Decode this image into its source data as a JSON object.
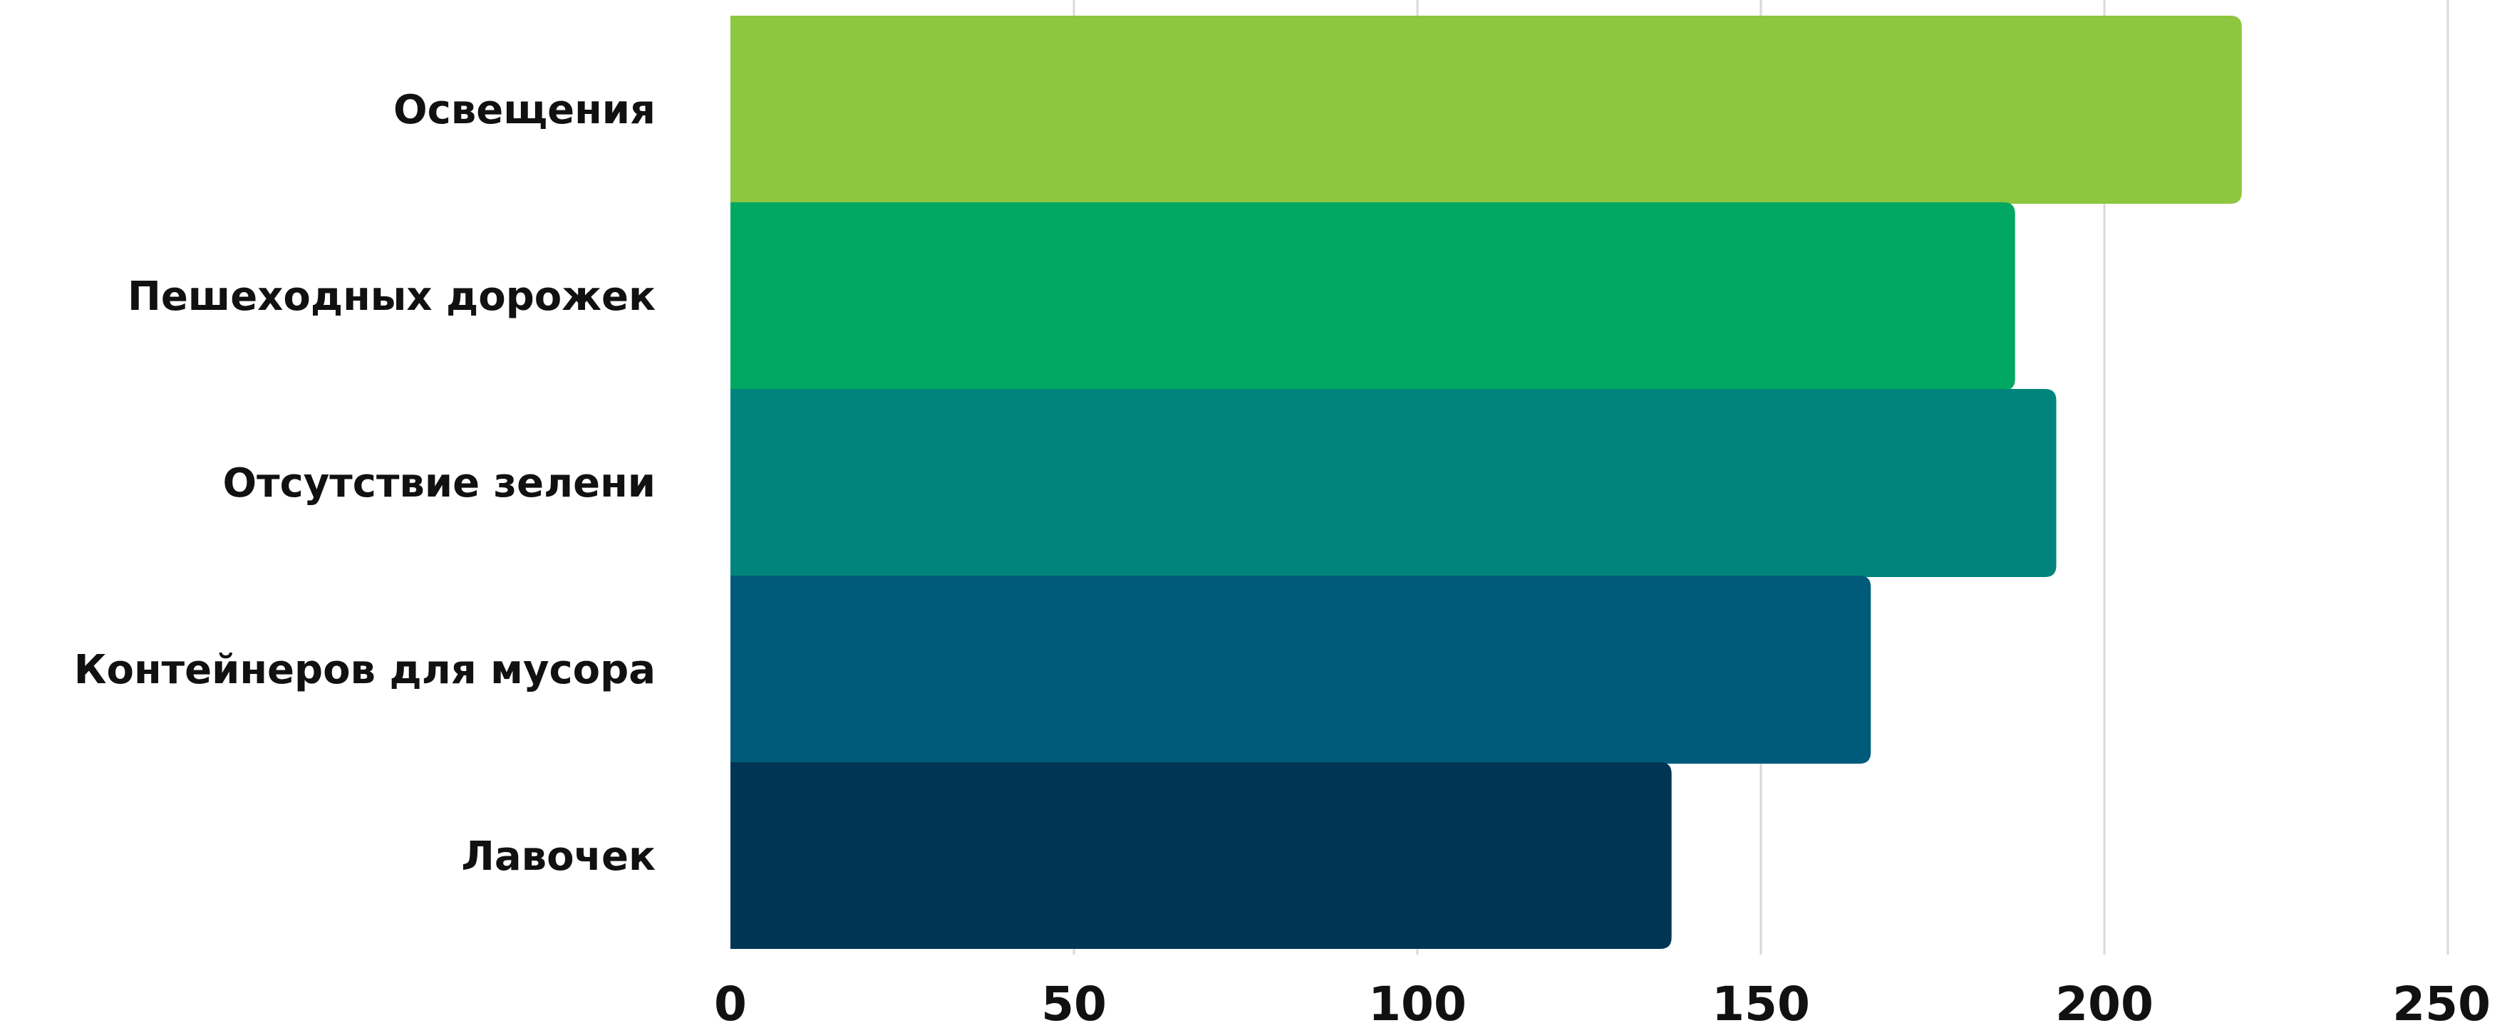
{
  "chart_data": {
    "type": "bar",
    "orientation": "horizontal",
    "categories": [
      "Освещения",
      "Пешеходных дорожек",
      "Отсутствие зелени",
      "Контейнеров для мусора",
      "Лавочек"
    ],
    "values": [
      220,
      187,
      193,
      166,
      137
    ],
    "colors": [
      "#8dc63f",
      "#00a862",
      "#00847c",
      "#005b7a",
      "#003654"
    ],
    "xlim": [
      0,
      250
    ],
    "xticks": [
      0,
      50,
      100,
      150,
      200,
      250
    ],
    "xtick_labels": [
      "0",
      "50",
      "100",
      "150",
      "200",
      "250"
    ],
    "grid": true,
    "title": "",
    "xlabel": "",
    "ylabel": ""
  }
}
